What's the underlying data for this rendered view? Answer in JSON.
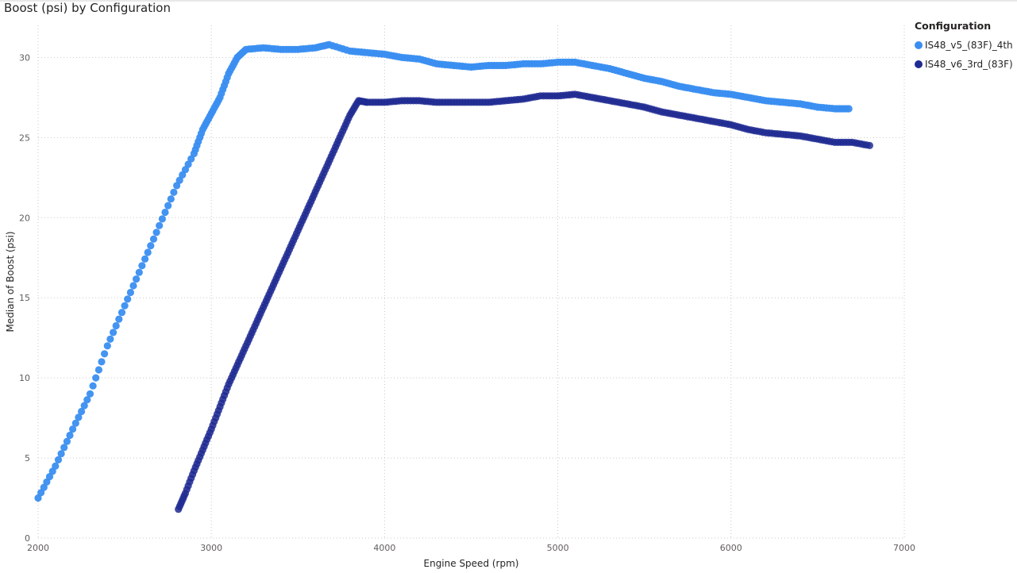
{
  "page": {
    "title": "Boost (psi) by Configuration"
  },
  "colors": {
    "series1": "#3a8ef0",
    "series2": "#202a92",
    "grid": "#c8c8c8"
  },
  "legend": {
    "title": "Configuration",
    "items": [
      {
        "label": "IS48_v5_(83F)_4th",
        "color": "#3a8ef0"
      },
      {
        "label": "IS48_v6_3rd_(83F)",
        "color": "#202a92"
      }
    ]
  },
  "chart_data": {
    "type": "scatter",
    "title": "Boost (psi) by Configuration",
    "xlabel": "Engine Speed (rpm)",
    "ylabel": "Median of Boost (psi)",
    "xlim": [
      2000,
      7000
    ],
    "ylim": [
      0,
      32
    ],
    "xticks": [
      2000,
      3000,
      4000,
      5000,
      6000,
      7000
    ],
    "yticks": [
      0,
      5,
      10,
      15,
      20,
      25,
      30
    ],
    "grid": true,
    "legend_position": "top-right",
    "series": [
      {
        "name": "IS48_v5_(83F)_4th",
        "color": "#3a8ef0",
        "points": [
          [
            2000,
            2.5
          ],
          [
            2100,
            4.5
          ],
          [
            2200,
            6.8
          ],
          [
            2300,
            9.0
          ],
          [
            2400,
            12.0
          ],
          [
            2500,
            14.5
          ],
          [
            2600,
            17.0
          ],
          [
            2700,
            19.5
          ],
          [
            2800,
            22.0
          ],
          [
            2900,
            24.0
          ],
          [
            2950,
            25.5
          ],
          [
            3000,
            26.5
          ],
          [
            3050,
            27.5
          ],
          [
            3100,
            29.0
          ],
          [
            3150,
            30.0
          ],
          [
            3200,
            30.5
          ],
          [
            3300,
            30.6
          ],
          [
            3400,
            30.5
          ],
          [
            3500,
            30.5
          ],
          [
            3600,
            30.6
          ],
          [
            3680,
            30.8
          ],
          [
            3800,
            30.4
          ],
          [
            3900,
            30.3
          ],
          [
            4000,
            30.2
          ],
          [
            4100,
            30.0
          ],
          [
            4200,
            29.9
          ],
          [
            4300,
            29.6
          ],
          [
            4400,
            29.5
          ],
          [
            4500,
            29.4
          ],
          [
            4600,
            29.5
          ],
          [
            4700,
            29.5
          ],
          [
            4800,
            29.6
          ],
          [
            4900,
            29.6
          ],
          [
            5000,
            29.7
          ],
          [
            5100,
            29.7
          ],
          [
            5200,
            29.5
          ],
          [
            5300,
            29.3
          ],
          [
            5400,
            29.0
          ],
          [
            5500,
            28.7
          ],
          [
            5600,
            28.5
          ],
          [
            5700,
            28.2
          ],
          [
            5800,
            28.0
          ],
          [
            5900,
            27.8
          ],
          [
            6000,
            27.7
          ],
          [
            6100,
            27.5
          ],
          [
            6200,
            27.3
          ],
          [
            6300,
            27.2
          ],
          [
            6400,
            27.1
          ],
          [
            6500,
            26.9
          ],
          [
            6600,
            26.8
          ],
          [
            6680,
            26.8
          ]
        ]
      },
      {
        "name": "IS48_v6_3rd_(83F)",
        "color": "#202a92",
        "points": [
          [
            2810,
            1.8
          ],
          [
            2850,
            2.8
          ],
          [
            2900,
            4.2
          ],
          [
            2950,
            5.5
          ],
          [
            3000,
            6.8
          ],
          [
            3050,
            8.2
          ],
          [
            3100,
            9.6
          ],
          [
            3150,
            10.8
          ],
          [
            3200,
            12.0
          ],
          [
            3250,
            13.2
          ],
          [
            3300,
            14.4
          ],
          [
            3350,
            15.6
          ],
          [
            3400,
            16.8
          ],
          [
            3450,
            18.0
          ],
          [
            3500,
            19.2
          ],
          [
            3550,
            20.4
          ],
          [
            3600,
            21.6
          ],
          [
            3650,
            22.8
          ],
          [
            3700,
            24.0
          ],
          [
            3750,
            25.2
          ],
          [
            3800,
            26.4
          ],
          [
            3850,
            27.3
          ],
          [
            3900,
            27.2
          ],
          [
            4000,
            27.2
          ],
          [
            4100,
            27.3
          ],
          [
            4200,
            27.3
          ],
          [
            4300,
            27.2
          ],
          [
            4400,
            27.2
          ],
          [
            4500,
            27.2
          ],
          [
            4600,
            27.2
          ],
          [
            4700,
            27.3
          ],
          [
            4800,
            27.4
          ],
          [
            4900,
            27.6
          ],
          [
            5000,
            27.6
          ],
          [
            5100,
            27.7
          ],
          [
            5200,
            27.5
          ],
          [
            5300,
            27.3
          ],
          [
            5400,
            27.1
          ],
          [
            5500,
            26.9
          ],
          [
            5600,
            26.6
          ],
          [
            5700,
            26.4
          ],
          [
            5800,
            26.2
          ],
          [
            5900,
            26.0
          ],
          [
            6000,
            25.8
          ],
          [
            6100,
            25.5
          ],
          [
            6200,
            25.3
          ],
          [
            6300,
            25.2
          ],
          [
            6400,
            25.1
          ],
          [
            6500,
            24.9
          ],
          [
            6600,
            24.7
          ],
          [
            6700,
            24.7
          ],
          [
            6800,
            24.5
          ]
        ]
      }
    ]
  }
}
